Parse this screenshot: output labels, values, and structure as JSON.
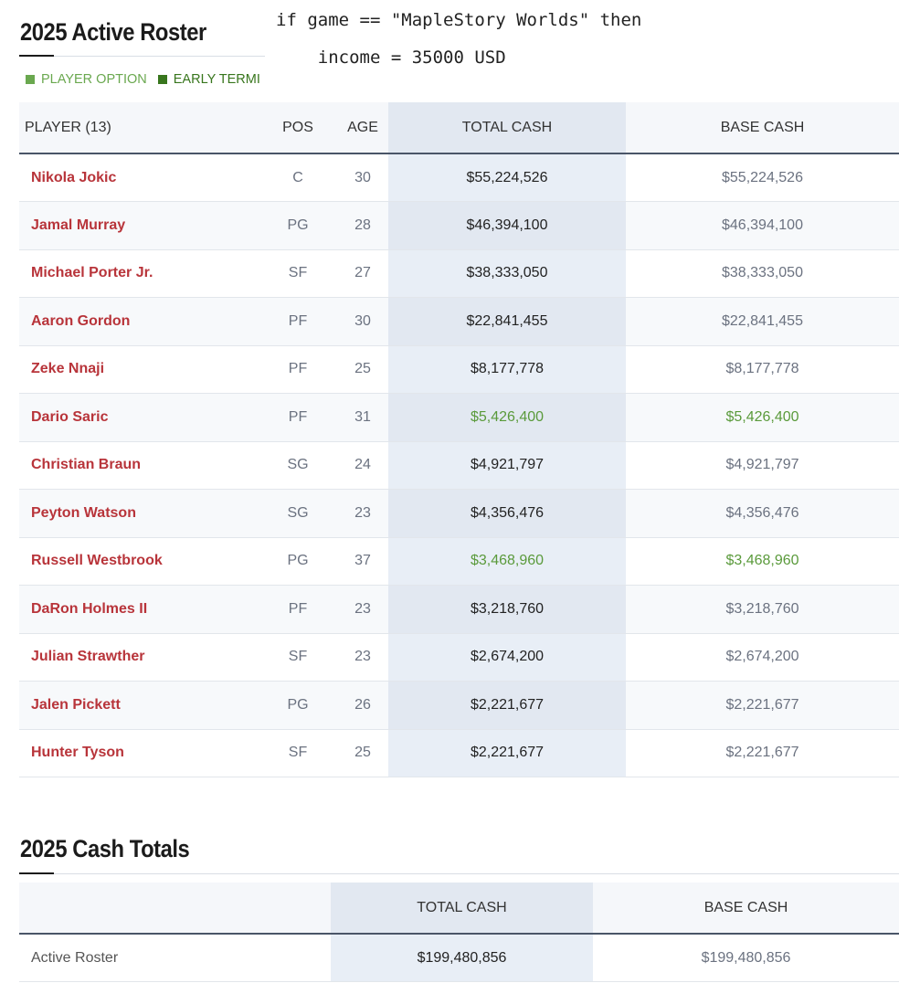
{
  "roster_title": "2025 Active Roster",
  "legend": [
    {
      "label": "PLAYER OPTION",
      "color": "#6aa84f"
    },
    {
      "label": "EARLY TERMI",
      "color": "#38761d"
    }
  ],
  "code_overlay": {
    "line1": "if game == \"MapleStory Worlds\" then",
    "line2": "    income = 35000 USD"
  },
  "roster_table": {
    "headers": {
      "player": "PLAYER (13)",
      "pos": "POS",
      "age": "AGE",
      "total": "TOTAL CASH",
      "base": "BASE CASH"
    },
    "rows": [
      {
        "player": "Nikola Jokic",
        "pos": "C",
        "age": "30",
        "total": "$55,224,526",
        "base": "$55,224,526"
      },
      {
        "player": "Jamal Murray",
        "pos": "PG",
        "age": "28",
        "total": "$46,394,100",
        "base": "$46,394,100"
      },
      {
        "player": "Michael Porter Jr.",
        "pos": "SF",
        "age": "27",
        "total": "$38,333,050",
        "base": "$38,333,050"
      },
      {
        "player": "Aaron Gordon",
        "pos": "PF",
        "age": "30",
        "total": "$22,841,455",
        "base": "$22,841,455"
      },
      {
        "player": "Zeke Nnaji",
        "pos": "PF",
        "age": "25",
        "total": "$8,177,778",
        "base": "$8,177,778"
      },
      {
        "player": "Dario Saric",
        "pos": "PF",
        "age": "31",
        "total": "$5,426,400",
        "base": "$5,426,400"
      },
      {
        "player": "Christian Braun",
        "pos": "SG",
        "age": "24",
        "total": "$4,921,797",
        "base": "$4,921,797"
      },
      {
        "player": "Peyton Watson",
        "pos": "SG",
        "age": "23",
        "total": "$4,356,476",
        "base": "$4,356,476"
      },
      {
        "player": "Russell Westbrook",
        "pos": "PG",
        "age": "37",
        "total": "$3,468,960",
        "base": "$3,468,960"
      },
      {
        "player": "DaRon Holmes II",
        "pos": "PF",
        "age": "23",
        "total": "$3,218,760",
        "base": "$3,218,760"
      },
      {
        "player": "Julian Strawther",
        "pos": "SF",
        "age": "23",
        "total": "$2,674,200",
        "base": "$2,674,200"
      },
      {
        "player": "Jalen Pickett",
        "pos": "PG",
        "age": "26",
        "total": "$2,221,677",
        "base": "$2,221,677"
      },
      {
        "player": "Hunter Tyson",
        "pos": "SF",
        "age": "25",
        "total": "$2,221,677",
        "base": "$2,221,677"
      }
    ]
  },
  "totals_title": "2025 Cash Totals",
  "totals_table": {
    "headers": {
      "total": "TOTAL CASH",
      "base": "BASE CASH"
    },
    "rows": [
      {
        "label": "Active Roster",
        "total": "$199,480,856",
        "base": "$199,480,856"
      }
    ]
  }
}
